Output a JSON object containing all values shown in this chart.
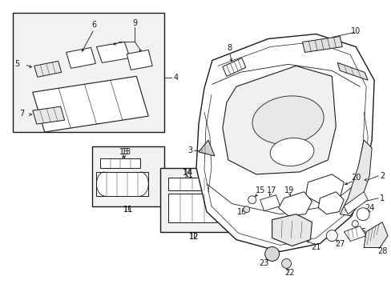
{
  "bg_color": "#ffffff",
  "line_color": "#1a1a1a",
  "fig_width": 4.89,
  "fig_height": 3.6,
  "dpi": 100,
  "label_fs": 7.0
}
